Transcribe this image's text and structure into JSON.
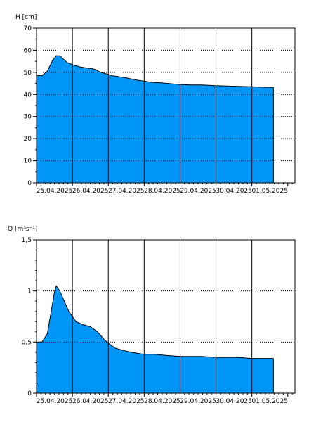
{
  "chart_data": [
    {
      "type": "area",
      "ylabel": "H [cm]",
      "ylim": [
        0,
        70
      ],
      "yticks": [
        "0",
        "10",
        "20",
        "30",
        "40",
        "50",
        "60",
        "70"
      ],
      "ytick_values": [
        0,
        10,
        20,
        30,
        40,
        50,
        60,
        70
      ],
      "x_ticks": [
        "25.04.2025",
        "26.04.2025",
        "27.04.2025",
        "28.04.2025",
        "29.04.2025",
        "30.04.2025",
        "01.05.2025"
      ],
      "xlim_days": [
        0,
        7.2
      ],
      "grid": true,
      "fill_color": "#0096f8",
      "series": [
        {
          "x": [
            -0.05,
            0.0,
            0.15,
            0.3,
            0.45,
            0.55,
            0.65,
            0.75,
            0.85,
            1.0,
            1.2,
            1.4,
            1.6,
            1.8,
            1.9,
            2.0,
            2.1,
            2.3,
            2.5,
            2.8,
            3.0,
            3.2,
            3.5,
            3.8,
            4.0,
            4.3,
            4.6,
            5.0,
            5.3,
            5.6,
            6.0,
            6.3,
            6.6
          ],
          "y": [
            49,
            48.5,
            48.5,
            50.5,
            55.5,
            57.5,
            57.5,
            56,
            54.5,
            53.5,
            52.5,
            52,
            51.5,
            50,
            49.5,
            49,
            48.5,
            48,
            47.5,
            46.5,
            46,
            45.5,
            45.2,
            44.8,
            44.5,
            44.3,
            44.3,
            44,
            43.8,
            43.7,
            43.5,
            43.3,
            43.2
          ]
        }
      ]
    },
    {
      "type": "area",
      "ylabel": "Q [m³s⁻¹]",
      "ylim": [
        0,
        1.5
      ],
      "yticks": [
        "0",
        "0,5",
        "1",
        "1,5"
      ],
      "ytick_values": [
        0,
        0.5,
        1,
        1.5
      ],
      "x_ticks": [
        "25.04.2025",
        "26.04.2025",
        "27.04.2025",
        "28.04.2025",
        "29.04.2025",
        "30.04.2025",
        "01.05.2025"
      ],
      "xlim_days": [
        0,
        7.2
      ],
      "grid": true,
      "fill_color": "#0096f8",
      "series": [
        {
          "x": [
            -0.05,
            0.0,
            0.15,
            0.3,
            0.4,
            0.5,
            0.55,
            0.65,
            0.75,
            0.9,
            1.1,
            1.3,
            1.5,
            1.7,
            1.8,
            1.9,
            2.0,
            2.2,
            2.5,
            2.8,
            3.0,
            3.3,
            3.6,
            4.0,
            4.3,
            4.6,
            5.0,
            5.3,
            5.6,
            6.0,
            6.3,
            6.6
          ],
          "y": [
            0.52,
            0.5,
            0.5,
            0.58,
            0.78,
            0.99,
            1.05,
            1.0,
            0.92,
            0.8,
            0.7,
            0.67,
            0.65,
            0.6,
            0.56,
            0.52,
            0.49,
            0.44,
            0.41,
            0.39,
            0.38,
            0.38,
            0.37,
            0.36,
            0.36,
            0.36,
            0.35,
            0.35,
            0.35,
            0.34,
            0.34,
            0.34
          ]
        }
      ]
    }
  ]
}
